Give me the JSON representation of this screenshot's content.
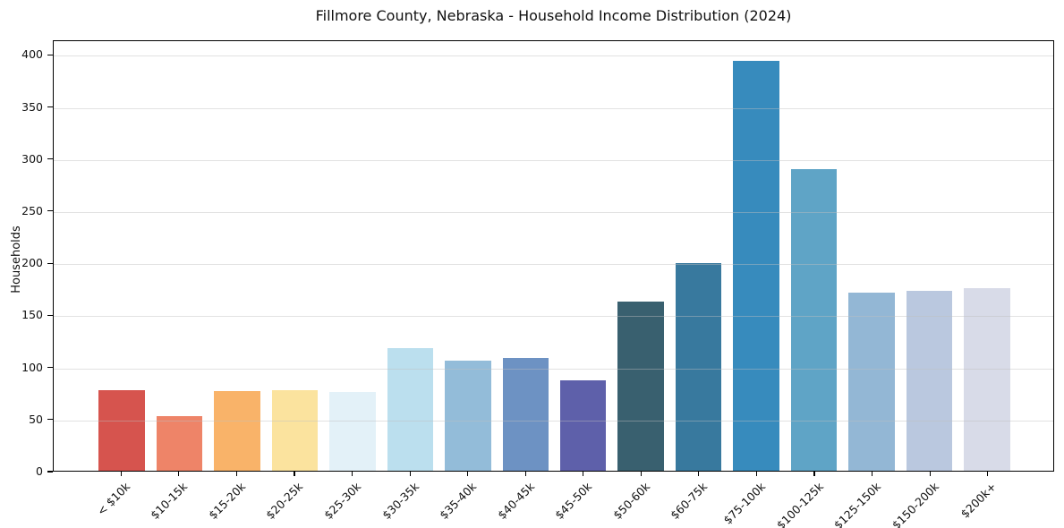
{
  "chart_data": {
    "type": "bar",
    "title": "Fillmore County, Nebraska - Household Income Distribution (2024)",
    "xlabel": "",
    "ylabel": "Households",
    "categories": [
      "< $10k",
      "$10-15k",
      "$15-20k",
      "$20-25k",
      "$25-30k",
      "$30-35k",
      "$35-40k",
      "$40-45k",
      "$45-50k",
      "$50-60k",
      "$60-75k",
      "$75-100k",
      "$100-125k",
      "$125-150k",
      "$150-200k",
      "$200k+"
    ],
    "values": [
      78,
      53,
      77,
      78,
      76,
      118,
      106,
      109,
      87,
      163,
      200,
      395,
      291,
      172,
      173,
      176
    ],
    "bar_colors": [
      "#d6544e",
      "#ee8468",
      "#f9b369",
      "#fbe39e",
      "#e3f1f8",
      "#bbdfee",
      "#93bcd9",
      "#6d92c3",
      "#5e60aa",
      "#39606f",
      "#38799e",
      "#378bbd",
      "#5fa4c6",
      "#93b7d5",
      "#bac8df",
      "#d8dbe8"
    ],
    "yticks": [
      0,
      50,
      100,
      150,
      200,
      250,
      300,
      350,
      400
    ],
    "ylim": [
      0,
      414
    ],
    "grid": true,
    "legend_position": "none",
    "colors": {
      "background": "#ffffff",
      "spine": "#000000",
      "gridline": "#e4e4e4",
      "text": "#111111"
    }
  }
}
